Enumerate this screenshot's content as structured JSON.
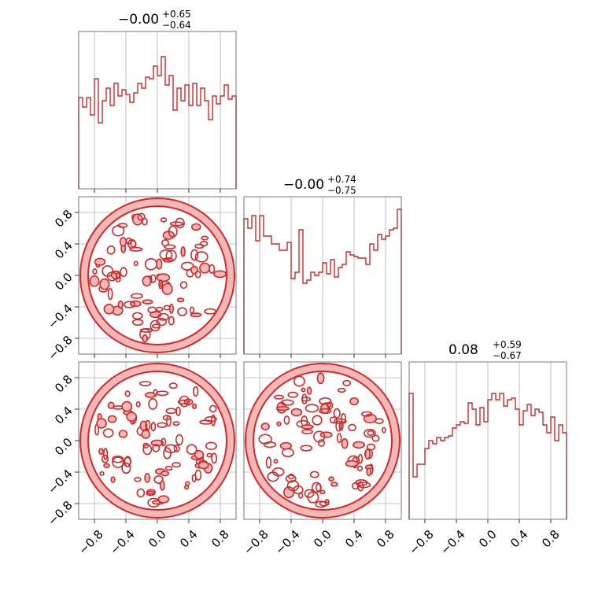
{
  "chart_data": {
    "type": "corner",
    "color": "#d62728",
    "tick_values": [
      -0.8,
      -0.4,
      0.0,
      0.4,
      0.8
    ],
    "tick_labels": [
      "−0.8",
      "−0.4",
      "0.0",
      "0.4",
      "0.8"
    ],
    "axis_range": [
      -1.0,
      1.0
    ],
    "grid": true,
    "panels": [
      {
        "type": "histogram",
        "row": 0,
        "col": 0,
        "title": {
          "median": "−0.00",
          "plus": "+0.65",
          "minus": "−0.64"
        },
        "bin_edges_range": [
          -1.0,
          1.0
        ],
        "counts": [
          0.58,
          0.52,
          0.58,
          0.47,
          0.7,
          0.42,
          0.56,
          0.64,
          0.53,
          0.67,
          0.59,
          0.63,
          0.6,
          0.55,
          0.61,
          0.67,
          0.64,
          0.71,
          0.7,
          0.78,
          0.72,
          0.84,
          0.66,
          0.72,
          0.5,
          0.64,
          0.56,
          0.66,
          0.53,
          0.67,
          0.53,
          0.64,
          0.56,
          0.44,
          0.59,
          0.54,
          0.59,
          0.66,
          0.57,
          0.59
        ]
      },
      {
        "type": "histogram",
        "row": 1,
        "col": 1,
        "title": {
          "median": "−0.00",
          "plus": "+0.74",
          "minus": "−0.75"
        },
        "bin_edges_range": [
          -1.0,
          1.0
        ],
        "counts": [
          0.86,
          0.8,
          0.88,
          0.72,
          0.88,
          0.75,
          0.75,
          0.7,
          0.7,
          0.66,
          0.66,
          0.71,
          0.48,
          0.52,
          0.79,
          0.45,
          0.47,
          0.52,
          0.5,
          0.52,
          0.58,
          0.51,
          0.6,
          0.49,
          0.55,
          0.57,
          0.65,
          0.63,
          0.62,
          0.61,
          0.61,
          0.57,
          0.7,
          0.66,
          0.76,
          0.73,
          0.75,
          0.79,
          0.8,
          0.92
        ]
      },
      {
        "type": "histogram",
        "row": 2,
        "col": 2,
        "title": {
          "median": "0.08",
          "plus": "+0.59",
          "minus": "−0.67"
        },
        "bin_edges_range": [
          -1.0,
          1.0
        ],
        "counts": [
          0.8,
          0.27,
          0.35,
          0.35,
          0.45,
          0.5,
          0.48,
          0.52,
          0.5,
          0.52,
          0.53,
          0.58,
          0.6,
          0.62,
          0.61,
          0.74,
          0.7,
          0.6,
          0.71,
          0.62,
          0.76,
          0.8,
          0.76,
          0.8,
          0.72,
          0.76,
          0.77,
          0.7,
          0.6,
          0.69,
          0.73,
          0.66,
          0.7,
          0.68,
          0.6,
          0.55,
          0.65,
          0.5,
          0.6,
          0.55
        ]
      },
      {
        "type": "contour2d",
        "row": 1,
        "col": 0,
        "x_param": 0,
        "y_param": 1,
        "support": "unit-disk",
        "seed": 11
      },
      {
        "type": "contour2d",
        "row": 2,
        "col": 0,
        "x_param": 0,
        "y_param": 2,
        "support": "unit-disk",
        "seed": 23
      },
      {
        "type": "contour2d",
        "row": 2,
        "col": 1,
        "x_param": 1,
        "y_param": 2,
        "support": "unit-disk",
        "seed": 37
      }
    ]
  }
}
